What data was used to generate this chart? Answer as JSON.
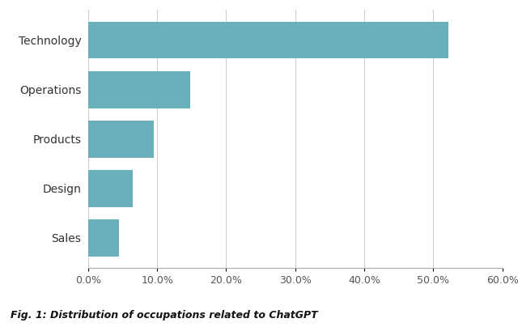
{
  "categories": [
    "Sales",
    "Design",
    "Products",
    "Operations",
    "Technology"
  ],
  "values": [
    0.045,
    0.065,
    0.095,
    0.148,
    0.522
  ],
  "bar_color": "#6ab0ba",
  "background_color": "#ffffff",
  "xlim": [
    0,
    0.6
  ],
  "xtick_values": [
    0.0,
    0.1,
    0.2,
    0.3,
    0.4,
    0.5,
    0.6
  ],
  "grid_color": "#cccccc",
  "bar_height": 0.75,
  "ylabel_fontsize": 10,
  "xlabel_fontsize": 9,
  "font_color": "#333333",
  "caption": "Fig. 1: Distribution of occupations related to ChatGPT"
}
